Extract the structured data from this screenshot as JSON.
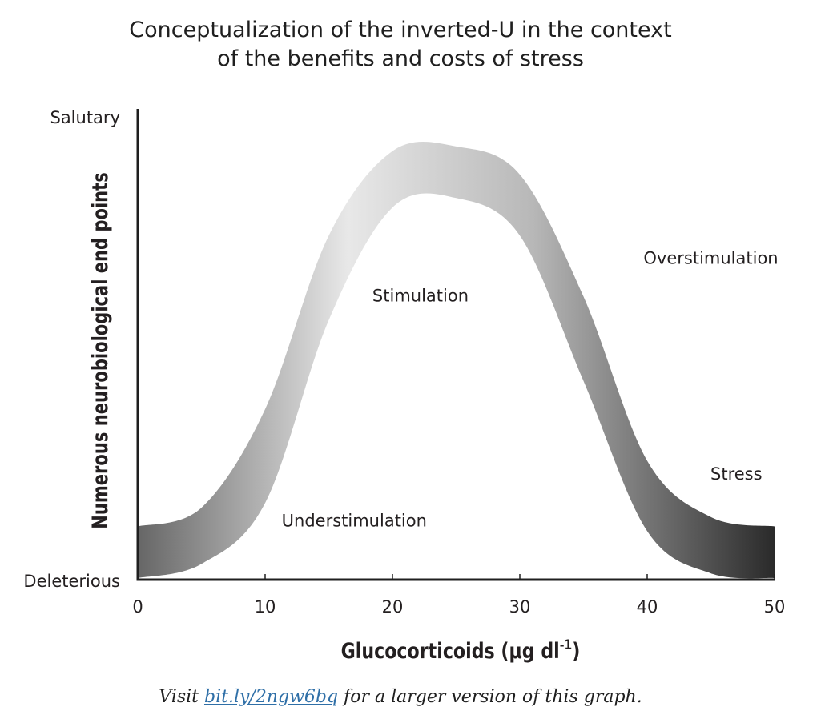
{
  "chart_data": {
    "type": "area",
    "title": "Conceptualization of the inverted-U in the context of the benefits and costs of stress",
    "title_lines": [
      "Conceptualization of the inverted-U in the context",
      "of the benefits and costs of stress"
    ],
    "xlabel": "Glucocorticoids (μg dl",
    "xlabel_superscript": "-1",
    "xlabel_close": ")",
    "ylabel": "Numerous neurobiological end points",
    "y_top_label": "Salutary",
    "y_bottom_label": "Deleterious",
    "xlim": [
      0,
      50
    ],
    "ylim": [
      0,
      1
    ],
    "x_ticks": [
      0,
      10,
      20,
      30,
      40,
      50
    ],
    "x_tick_labels": [
      "0",
      "10",
      "20",
      "30",
      "40",
      "50"
    ],
    "grid": false,
    "band": {
      "x": [
        0,
        5,
        10,
        15,
        20,
        25,
        30,
        35,
        40,
        45,
        50
      ],
      "upper": [
        0.11,
        0.15,
        0.36,
        0.73,
        0.91,
        0.92,
        0.86,
        0.6,
        0.25,
        0.13,
        0.11
      ],
      "lower": [
        0.0,
        0.03,
        0.16,
        0.55,
        0.79,
        0.81,
        0.73,
        0.42,
        0.1,
        0.01,
        0.0
      ],
      "gradient_colors": [
        "#666666",
        "#e8e8e8",
        "#b8b8b8",
        "#2a2a2a"
      ]
    },
    "annotations": [
      {
        "text": "Understimulation",
        "x": 17,
        "y": 0.11
      },
      {
        "text": "Stimulation",
        "x": 22.2,
        "y": 0.59
      },
      {
        "text": "Overstimulation",
        "x": 45,
        "y": 0.67
      },
      {
        "text": "Stress",
        "x": 47,
        "y": 0.21
      }
    ]
  },
  "caption": {
    "prefix": "Visit ",
    "link_text": "bit.ly/2ngw6bq",
    "suffix": " for a larger version of this graph."
  }
}
